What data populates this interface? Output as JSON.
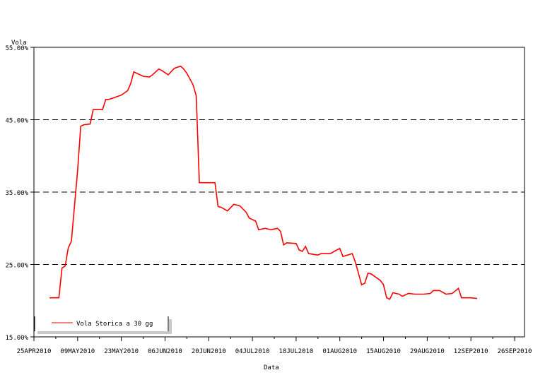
{
  "chart_data": {
    "type": "line",
    "ylabel": "Vola",
    "xlabel": "Data",
    "ylim": [
      15,
      55
    ],
    "xlim": [
      "2010-04-25",
      "2010-09-26"
    ],
    "grid": "horizontal-dashed",
    "y_ticks": [
      {
        "value": 55,
        "label": "55.00%"
      },
      {
        "value": 45,
        "label": "45.00%"
      },
      {
        "value": 35,
        "label": "35.00%"
      },
      {
        "value": 25,
        "label": "25.00%"
      },
      {
        "value": 15,
        "label": "15.00%"
      }
    ],
    "x_ticks": [
      {
        "date": "2010-04-25",
        "label": "25APR2010"
      },
      {
        "date": "2010-05-09",
        "label": "09MAY2010"
      },
      {
        "date": "2010-05-23",
        "label": "23MAY2010"
      },
      {
        "date": "2010-06-06",
        "label": "06JUN2010"
      },
      {
        "date": "2010-06-20",
        "label": "20JUN2010"
      },
      {
        "date": "2010-07-04",
        "label": "04JUL2010"
      },
      {
        "date": "2010-07-18",
        "label": "18JUL2010"
      },
      {
        "date": "2010-08-01",
        "label": "01AUG2010"
      },
      {
        "date": "2010-08-15",
        "label": "15AUG2010"
      },
      {
        "date": "2010-08-29",
        "label": "29AUG2010"
      },
      {
        "date": "2010-09-12",
        "label": "12SEP2010"
      },
      {
        "date": "2010-09-26",
        "label": "26SEP2010"
      }
    ],
    "legend": {
      "position": "bottom-left",
      "label": "Vola Storica a 30 gg"
    },
    "series": [
      {
        "name": "Vola Storica a 30 gg",
        "color": "#ff0000",
        "points": [
          [
            "2010-04-30",
            20.4
          ],
          [
            "2010-05-03",
            20.4
          ],
          [
            "2010-05-04",
            24.5
          ],
          [
            "2010-05-05",
            24.8
          ],
          [
            "2010-05-06",
            27.3
          ],
          [
            "2010-05-07",
            28.2
          ],
          [
            "2010-05-08",
            33.1
          ],
          [
            "2010-05-09",
            38.0
          ],
          [
            "2010-05-10",
            44.1
          ],
          [
            "2010-05-11",
            44.3
          ],
          [
            "2010-05-13",
            44.4
          ],
          [
            "2010-05-14",
            46.4
          ],
          [
            "2010-05-17",
            46.4
          ],
          [
            "2010-05-18",
            47.8
          ],
          [
            "2010-05-19",
            47.8
          ],
          [
            "2010-05-21",
            48.1
          ],
          [
            "2010-05-23",
            48.4
          ],
          [
            "2010-05-25",
            49.0
          ],
          [
            "2010-05-26",
            50.0
          ],
          [
            "2010-05-27",
            51.6
          ],
          [
            "2010-05-28",
            51.4
          ],
          [
            "2010-05-30",
            51.0
          ],
          [
            "2010-06-01",
            50.9
          ],
          [
            "2010-06-02",
            51.2
          ],
          [
            "2010-06-04",
            52.0
          ],
          [
            "2010-06-05",
            51.8
          ],
          [
            "2010-06-07",
            51.2
          ],
          [
            "2010-06-09",
            52.1
          ],
          [
            "2010-06-11",
            52.4
          ],
          [
            "2010-06-12",
            52.0
          ],
          [
            "2010-06-13",
            51.4
          ],
          [
            "2010-06-15",
            49.8
          ],
          [
            "2010-06-16",
            48.3
          ],
          [
            "2010-06-17",
            36.3
          ],
          [
            "2010-06-20",
            36.3
          ],
          [
            "2010-06-22",
            36.3
          ],
          [
            "2010-06-23",
            33.0
          ],
          [
            "2010-06-24",
            32.9
          ],
          [
            "2010-06-26",
            32.4
          ],
          [
            "2010-06-28",
            33.3
          ],
          [
            "2010-06-30",
            33.1
          ],
          [
            "2010-07-02",
            32.2
          ],
          [
            "2010-07-03",
            31.4
          ],
          [
            "2010-07-05",
            31.0
          ],
          [
            "2010-07-06",
            29.8
          ],
          [
            "2010-07-08",
            30.0
          ],
          [
            "2010-07-10",
            29.8
          ],
          [
            "2010-07-12",
            30.0
          ],
          [
            "2010-07-13",
            29.6
          ],
          [
            "2010-07-14",
            27.7
          ],
          [
            "2010-07-15",
            28.0
          ],
          [
            "2010-07-18",
            27.9
          ],
          [
            "2010-07-19",
            27.0
          ],
          [
            "2010-07-20",
            26.8
          ],
          [
            "2010-07-21",
            27.5
          ],
          [
            "2010-07-22",
            26.5
          ],
          [
            "2010-07-25",
            26.3
          ],
          [
            "2010-07-26",
            26.5
          ],
          [
            "2010-07-29",
            26.5
          ],
          [
            "2010-07-31",
            27.0
          ],
          [
            "2010-08-01",
            27.2
          ],
          [
            "2010-08-02",
            26.1
          ],
          [
            "2010-08-05",
            26.5
          ],
          [
            "2010-08-06",
            25.3
          ],
          [
            "2010-08-08",
            22.2
          ],
          [
            "2010-08-09",
            22.4
          ],
          [
            "2010-08-10",
            23.8
          ],
          [
            "2010-08-11",
            23.7
          ],
          [
            "2010-08-14",
            22.8
          ],
          [
            "2010-08-15",
            22.2
          ],
          [
            "2010-08-16",
            20.4
          ],
          [
            "2010-08-17",
            20.2
          ],
          [
            "2010-08-18",
            21.1
          ],
          [
            "2010-08-20",
            20.9
          ],
          [
            "2010-08-21",
            20.6
          ],
          [
            "2010-08-23",
            21.0
          ],
          [
            "2010-08-25",
            20.9
          ],
          [
            "2010-08-28",
            20.9
          ],
          [
            "2010-08-30",
            21.0
          ],
          [
            "2010-08-31",
            21.4
          ],
          [
            "2010-09-02",
            21.4
          ],
          [
            "2010-09-04",
            20.9
          ],
          [
            "2010-09-06",
            21.0
          ],
          [
            "2010-09-08",
            21.7
          ],
          [
            "2010-09-09",
            20.4
          ],
          [
            "2010-09-12",
            20.4
          ],
          [
            "2010-09-14",
            20.3
          ]
        ]
      }
    ]
  }
}
